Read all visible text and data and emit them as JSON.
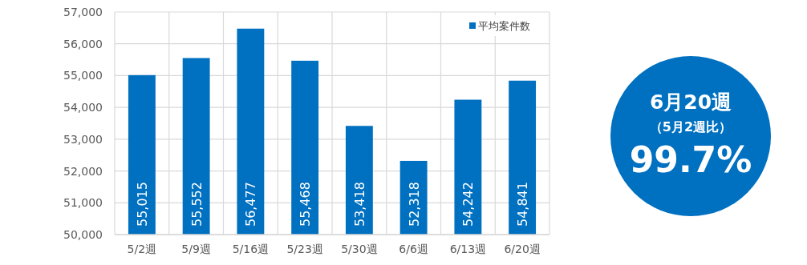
{
  "chart_data": [
    {
      "type": "bar",
      "categories": [
        "5/2週",
        "5/9週",
        "5/16週",
        "5/23週",
        "5/30週",
        "6/6週",
        "6/13週",
        "6/20週"
      ],
      "series": [
        {
          "name": "平均案件数",
          "color": "#0070c0",
          "values": [
            55015,
            55552,
            56477,
            55468,
            53418,
            52318,
            54242,
            54841
          ]
        }
      ],
      "ylim": [
        50000,
        57000
      ],
      "yticks": [
        {
          "value": 50000,
          "label": "50,000"
        },
        {
          "value": 51000,
          "label": "51,000"
        },
        {
          "value": 52000,
          "label": "52,000"
        },
        {
          "value": 53000,
          "label": "53,000"
        },
        {
          "value": 54000,
          "label": "54,000"
        },
        {
          "value": 55000,
          "label": "55,000"
        },
        {
          "value": 56000,
          "label": "56,000"
        },
        {
          "value": 57000,
          "label": "57,000"
        }
      ],
      "value_labels": [
        "55,015",
        "55,552",
        "56,477",
        "55,468",
        "53,418",
        "52,318",
        "54,242",
        "54,841"
      ],
      "grid": true,
      "legend": "top right"
    },
    {
      "type": "other",
      "title": "6月20週",
      "subtitle": "（5月2週比）",
      "annotations": [
        "99.7%"
      ],
      "color": "#0070c0"
    }
  ]
}
